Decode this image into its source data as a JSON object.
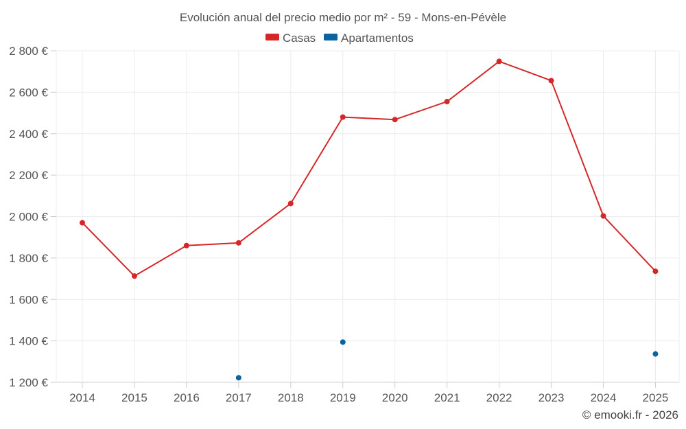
{
  "colors": {
    "casas": "#d62728",
    "apartamentos": "#0a64a0"
  },
  "credit": "© emooki.fr - 2026",
  "chart_data": {
    "type": "line",
    "title": "Evolución anual del precio medio por m² - 59 - Mons-en-Pévèle",
    "xlabel": "",
    "ylabel": "",
    "categories": [
      "2014",
      "2015",
      "2016",
      "2017",
      "2018",
      "2019",
      "2020",
      "2021",
      "2022",
      "2023",
      "2024",
      "2025"
    ],
    "ylim": [
      1200,
      2800
    ],
    "yticks": [
      1200,
      1400,
      1600,
      1800,
      2000,
      2200,
      2400,
      2600,
      2800
    ],
    "ytick_labels": [
      "1 200 €",
      "1 400 €",
      "1 600 €",
      "1 800 €",
      "2 000 €",
      "2 200 €",
      "2 400 €",
      "2 600 €",
      "2 800 €"
    ],
    "legend": [
      "Casas",
      "Apartamentos"
    ],
    "legend_position": "top-center",
    "grid": true,
    "series": [
      {
        "name": "Casas",
        "color": "#d62728",
        "connected": true,
        "values": [
          1970,
          1713,
          1860,
          1873,
          2063,
          2480,
          2468,
          2555,
          2749,
          2656,
          2003,
          1736
        ]
      },
      {
        "name": "Apartamentos",
        "color": "#0a64a0",
        "connected": false,
        "values": [
          null,
          null,
          null,
          1222,
          null,
          1394,
          null,
          null,
          null,
          null,
          null,
          1337
        ]
      }
    ]
  }
}
